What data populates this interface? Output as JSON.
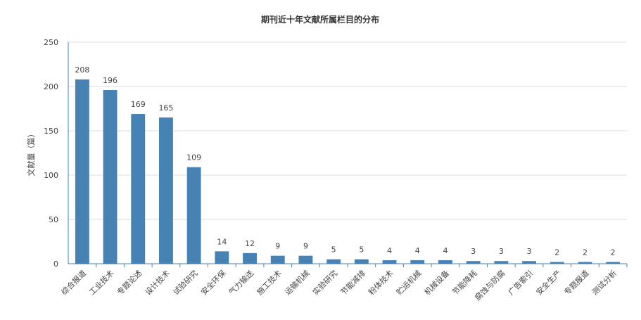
{
  "chart_data": {
    "type": "bar",
    "title": "期刊近十年文献所属栏目的分布",
    "ylabel": "文献量（篇）",
    "xlabel": "",
    "ylim": [
      0,
      250
    ],
    "yticks": [
      0,
      50,
      100,
      150,
      200,
      250
    ],
    "grid": true,
    "bar_color": "#4682b4",
    "categories": [
      "综合报道",
      "工业技术",
      "专题论述",
      "设计技术",
      "试验研究",
      "安全环保",
      "气力输送",
      "施工技术",
      "运输机械",
      "实验研究",
      "节能减排",
      "粉体技术",
      "贮运机械",
      "机械设备",
      "节能降耗",
      "腐蚀与防腐",
      "广告索引",
      "安全生产",
      "专题报道",
      "测试分析"
    ],
    "values": [
      208,
      196,
      169,
      165,
      109,
      14,
      12,
      9,
      9,
      5,
      5,
      4,
      4,
      4,
      3,
      3,
      3,
      2,
      2,
      2
    ]
  }
}
